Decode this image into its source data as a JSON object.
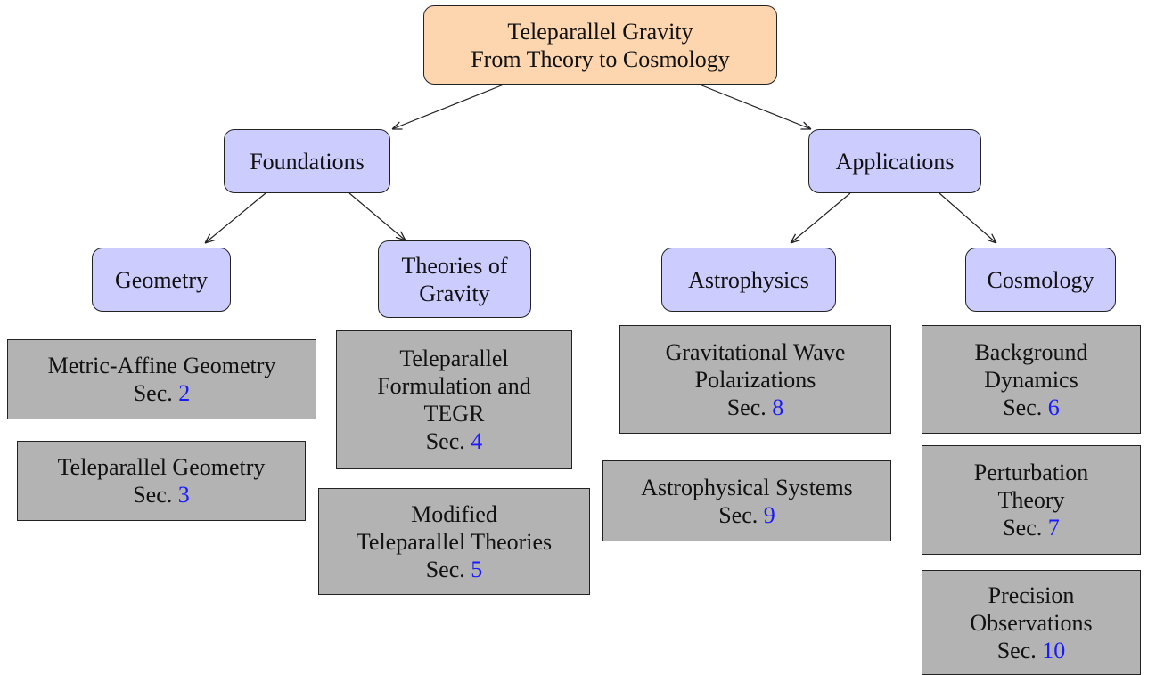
{
  "root": {
    "lines": [
      "Teleparallel Gravity",
      "From Theory to Cosmology"
    ]
  },
  "nodes": [
    {
      "lines": [
        "Foundations"
      ]
    },
    {
      "lines": [
        "Applications"
      ]
    },
    {
      "lines": [
        "Geometry"
      ]
    },
    {
      "lines": [
        "Theories of",
        "Gravity"
      ]
    },
    {
      "lines": [
        "Astrophysics"
      ]
    },
    {
      "lines": [
        "Cosmology"
      ]
    }
  ],
  "leaves": [
    {
      "lines": [
        "Metric-Affine Geometry"
      ],
      "sec_label": "Sec.",
      "sec": 2
    },
    {
      "lines": [
        "Teleparallel Geometry"
      ],
      "sec_label": "Sec.",
      "sec": 3
    },
    {
      "lines": [
        "Teleparallel",
        "Formulation and",
        "TEGR"
      ],
      "sec_label": "Sec.",
      "sec": 4
    },
    {
      "lines": [
        "Modified",
        "Teleparallel Theories"
      ],
      "sec_label": "Sec.",
      "sec": 5
    },
    {
      "lines": [
        "Gravitational Wave",
        "Polarizations"
      ],
      "sec_label": "Sec.",
      "sec": 8
    },
    {
      "lines": [
        "Astrophysical Systems"
      ],
      "sec_label": "Sec.",
      "sec": 9
    },
    {
      "lines": [
        "Background",
        "Dynamics"
      ],
      "sec_label": "Sec.",
      "sec": 6
    },
    {
      "lines": [
        "Perturbation",
        "Theory"
      ],
      "sec_label": "Sec.",
      "sec": 7
    },
    {
      "lines": [
        "Precision",
        "Observations"
      ],
      "sec_label": "Sec.",
      "sec": 10
    }
  ]
}
